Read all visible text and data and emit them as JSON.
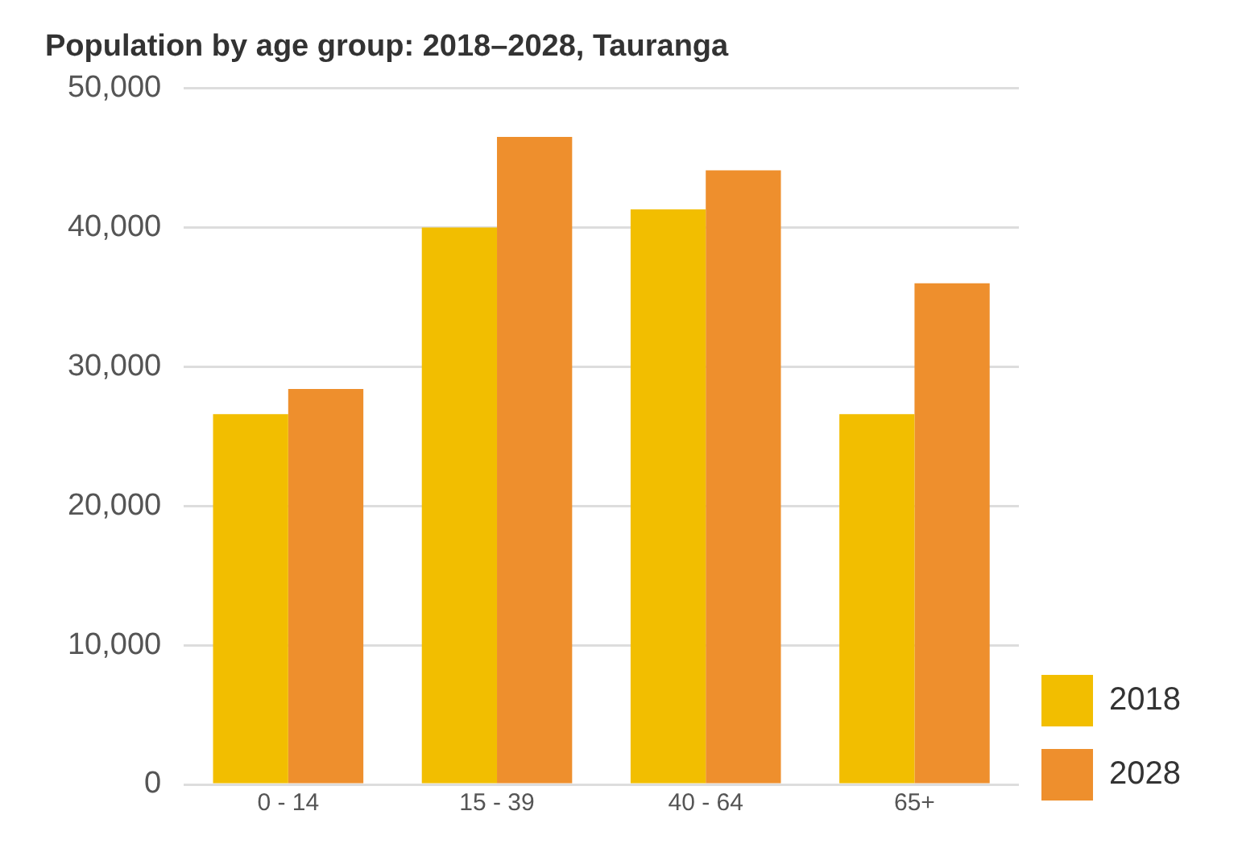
{
  "chart_data": {
    "type": "bar",
    "title": "Population by age group: 2018–2028, Tauranga",
    "categories": [
      "0 - 14",
      "15 - 39",
      "40 - 64",
      "65+"
    ],
    "series": [
      {
        "name": "2018",
        "color": "#f2be00",
        "values": [
          26600,
          40000,
          41300,
          26600
        ]
      },
      {
        "name": "2028",
        "color": "#ee8f2d",
        "values": [
          28400,
          46500,
          44100,
          36000
        ]
      }
    ],
    "ylim": [
      0,
      50000
    ],
    "yticks": [
      0,
      {
        "value": 10000,
        "label": "10,000"
      },
      {
        "value": 20000,
        "label": "20,000"
      },
      {
        "value": 30000,
        "label": "30,000"
      },
      {
        "value": 40000,
        "label": "40,000"
      },
      {
        "value": 50000,
        "label": "50,000"
      }
    ],
    "grid": "y",
    "legend": "bottom right"
  }
}
